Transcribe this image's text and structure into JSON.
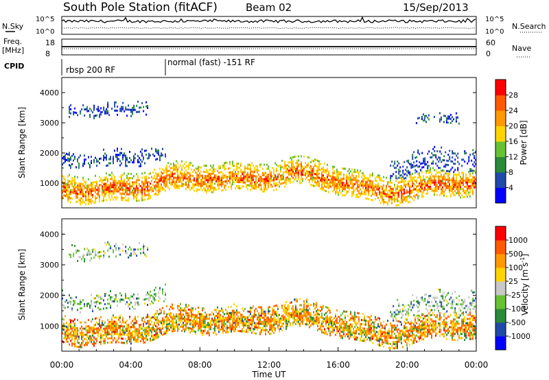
{
  "header": {
    "title": "South Pole Station (fitACF)",
    "beam": "Beam 02",
    "date": "15/Sep/2013"
  },
  "noise_panel": {
    "left_label": "N.Sky",
    "right_label": "N.Search",
    "ticks_left": [
      "10^5",
      "10^0"
    ],
    "ticks_right": [
      "10^5",
      "10^0"
    ]
  },
  "freq_panel": {
    "left_label_1": "Freq.",
    "left_label_2": "[MHz]",
    "right_label": "Nave",
    "ticks_left": [
      "18",
      "8"
    ],
    "ticks_right": [
      "60",
      "0"
    ]
  },
  "cpid": {
    "label": "CPID",
    "modes": [
      {
        "name": "rbsp 200 RF",
        "start_hour": 0
      },
      {
        "name": "normal (fast) -151 RF",
        "start_hour": 6
      }
    ]
  },
  "chart_data": [
    {
      "type": "heatmap",
      "quantity": "Power",
      "ylabel": "Slant Range [km]",
      "xlabel": "",
      "xlim_hours": [
        0,
        24
      ],
      "ylim_km": [
        180,
        4500
      ],
      "y_ticks": [
        "1000",
        "2000",
        "3000",
        "4000"
      ],
      "colorbar": {
        "label": "Power [dB]",
        "ticks": [
          "28",
          "24",
          "20",
          "16",
          "12",
          "8",
          "4"
        ],
        "colors": [
          "#0000ff",
          "#1f4aa8",
          "#2a8a3a",
          "#66c133",
          "#ffd400",
          "#ff9900",
          "#ff5a00",
          "#ff0000"
        ]
      },
      "echo_regions": [
        {
          "hours": [
            0.0,
            24.0
          ],
          "range_km": [
            500,
            1400
          ],
          "core_db": 24
        },
        {
          "hours": [
            0.0,
            6.0
          ],
          "range_km": [
            1600,
            2200
          ],
          "core_db": 6
        },
        {
          "hours": [
            0.4,
            5.0
          ],
          "range_km": [
            3300,
            3800
          ],
          "core_db": 6
        },
        {
          "hours": [
            19.0,
            24.0
          ],
          "range_km": [
            1300,
            2100
          ],
          "core_db": 6
        },
        {
          "hours": [
            20.5,
            23.0
          ],
          "range_km": [
            2900,
            3300
          ],
          "core_db": 6
        }
      ]
    },
    {
      "type": "heatmap",
      "quantity": "Velocity",
      "ylabel": "Slant Range [km]",
      "xlabel": "Time UT",
      "xlim_hours": [
        0,
        24
      ],
      "ylim_km": [
        180,
        4500
      ],
      "x_ticks": [
        "00:00",
        "04:00",
        "08:00",
        "12:00",
        "16:00",
        "20:00",
        "00:00"
      ],
      "y_ticks": [
        "1000",
        "2000",
        "3000",
        "4000"
      ],
      "colorbar": {
        "label": "Velocity [m s",
        "label_sup": "-1",
        "label_end": "]",
        "ticks": [
          "1000",
          "500",
          "100",
          "25",
          "-25",
          "-100",
          "-500",
          "-1000"
        ],
        "colors": [
          "#0000ff",
          "#1f4aa8",
          "#2a8a3a",
          "#66c133",
          "#c8c8c8",
          "#ffd400",
          "#ff9900",
          "#ff5a00",
          "#ff0000"
        ]
      },
      "echo_regions": [
        {
          "hours": [
            0.0,
            24.0
          ],
          "range_km": [
            500,
            1400
          ],
          "core_ms": -300
        },
        {
          "hours": [
            0.0,
            6.0
          ],
          "range_km": [
            1600,
            2200
          ],
          "core_ms": 0
        },
        {
          "hours": [
            0.4,
            5.0
          ],
          "range_km": [
            3300,
            3800
          ],
          "core_ms": 0
        },
        {
          "hours": [
            19.0,
            24.0
          ],
          "range_km": [
            1300,
            2100
          ],
          "core_ms": 0
        }
      ]
    }
  ]
}
